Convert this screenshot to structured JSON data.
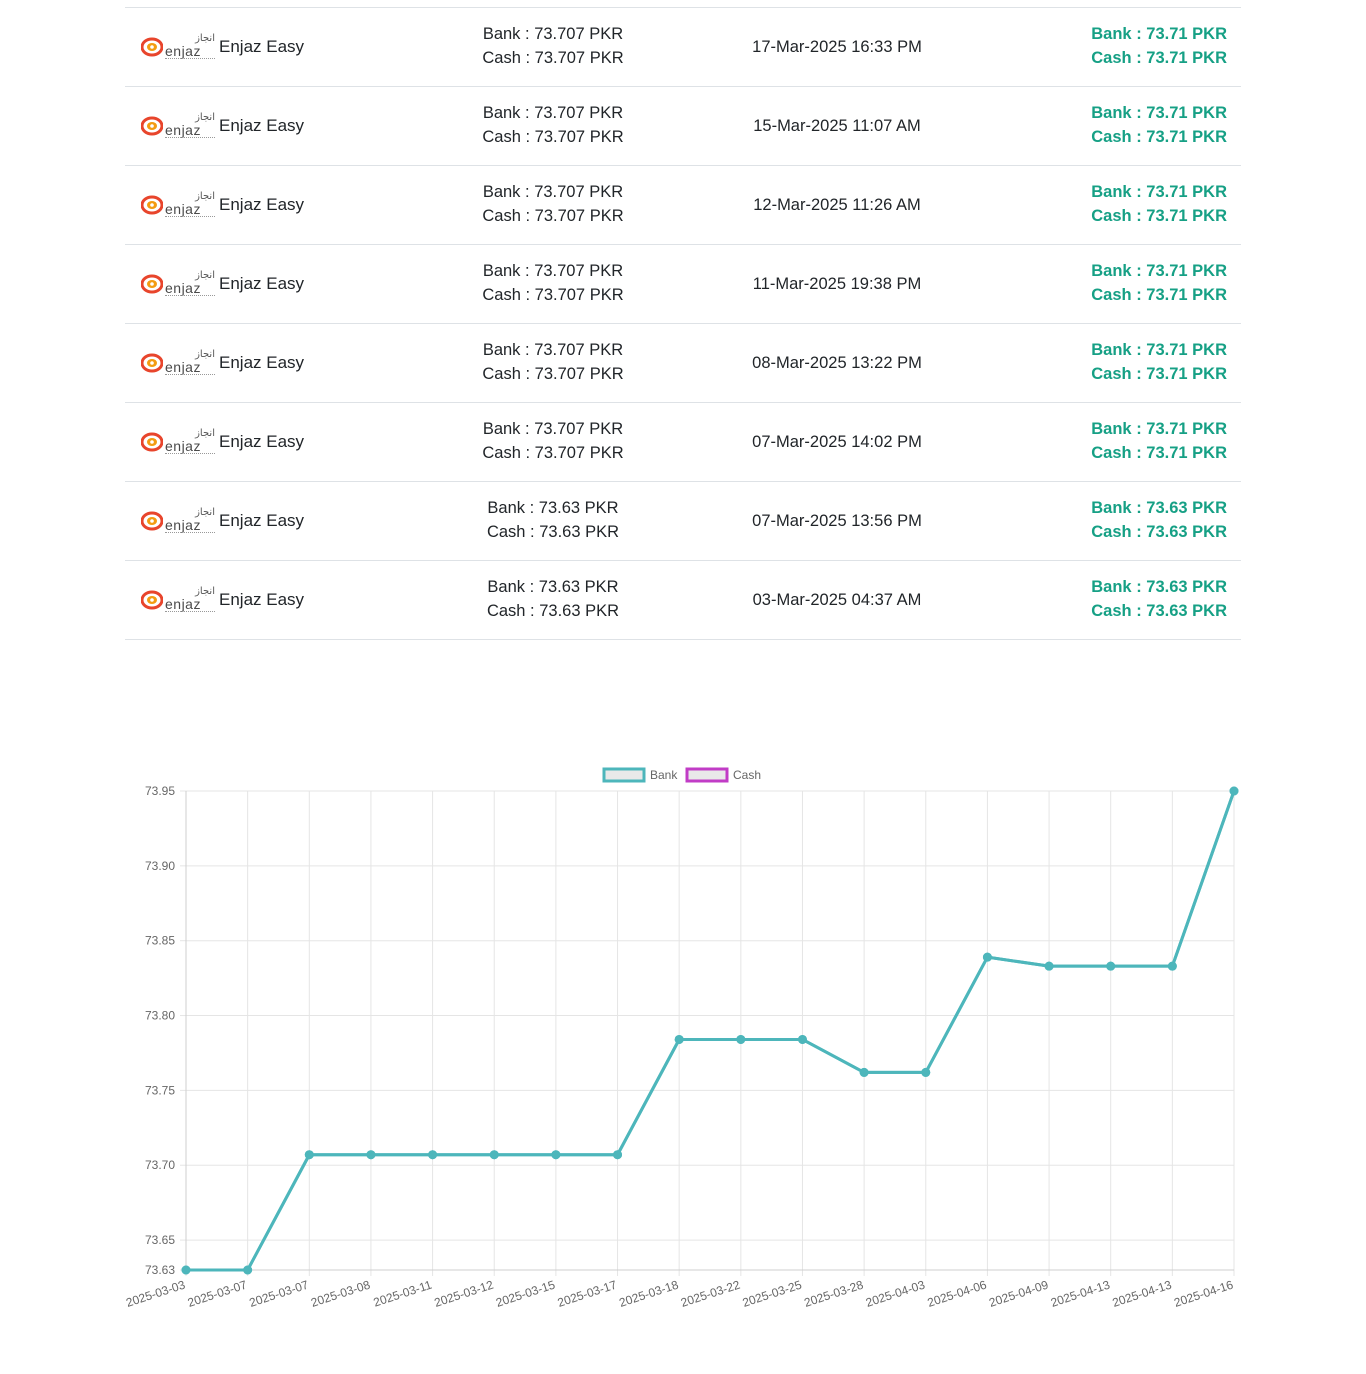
{
  "table": {
    "rows": [
      {
        "provider": "Enjaz Easy",
        "bank": "Bank : 73.707 PKR",
        "cash": "Cash : 73.707 PKR",
        "date": "17-Mar-2025 16:33 PM",
        "conv_bank": "Bank : 73.71 PKR",
        "conv_cash": "Cash : 73.71 PKR"
      },
      {
        "provider": "Enjaz Easy",
        "bank": "Bank : 73.707 PKR",
        "cash": "Cash : 73.707 PKR",
        "date": "15-Mar-2025 11:07 AM",
        "conv_bank": "Bank : 73.71 PKR",
        "conv_cash": "Cash : 73.71 PKR"
      },
      {
        "provider": "Enjaz Easy",
        "bank": "Bank : 73.707 PKR",
        "cash": "Cash : 73.707 PKR",
        "date": "12-Mar-2025 11:26 AM",
        "conv_bank": "Bank : 73.71 PKR",
        "conv_cash": "Cash : 73.71 PKR"
      },
      {
        "provider": "Enjaz Easy",
        "bank": "Bank : 73.707 PKR",
        "cash": "Cash : 73.707 PKR",
        "date": "11-Mar-2025 19:38 PM",
        "conv_bank": "Bank : 73.71 PKR",
        "conv_cash": "Cash : 73.71 PKR"
      },
      {
        "provider": "Enjaz Easy",
        "bank": "Bank : 73.707 PKR",
        "cash": "Cash : 73.707 PKR",
        "date": "08-Mar-2025 13:22 PM",
        "conv_bank": "Bank : 73.71 PKR",
        "conv_cash": "Cash : 73.71 PKR"
      },
      {
        "provider": "Enjaz Easy",
        "bank": "Bank : 73.707 PKR",
        "cash": "Cash : 73.707 PKR",
        "date": "07-Mar-2025 14:02 PM",
        "conv_bank": "Bank : 73.71 PKR",
        "conv_cash": "Cash : 73.71 PKR"
      },
      {
        "provider": "Enjaz Easy",
        "bank": "Bank : 73.63 PKR",
        "cash": "Cash : 73.63 PKR",
        "date": "07-Mar-2025 13:56 PM",
        "conv_bank": "Bank : 73.63 PKR",
        "conv_cash": "Cash : 73.63 PKR"
      },
      {
        "provider": "Enjaz Easy",
        "bank": "Bank : 73.63 PKR",
        "cash": "Cash : 73.63 PKR",
        "date": "03-Mar-2025 04:37 AM",
        "conv_bank": "Bank : 73.63 PKR",
        "conv_cash": "Cash : 73.63 PKR"
      }
    ]
  },
  "logo": {
    "arabic": "انجاز",
    "latin": "enjaz",
    "colors": {
      "outer": "#e8452c",
      "inner": "#f39c12"
    }
  },
  "colors": {
    "converted": "#16a085",
    "bank_line": "#4db6bb",
    "cash_line": "#c13cc6",
    "grid": "#e5e5e5"
  },
  "chart_data": {
    "type": "line",
    "categories": [
      "2025-03-03",
      "2025-03-07",
      "2025-03-07",
      "2025-03-08",
      "2025-03-11",
      "2025-03-12",
      "2025-03-15",
      "2025-03-17",
      "2025-03-18",
      "2025-03-22",
      "2025-03-25",
      "2025-03-28",
      "2025-04-03",
      "2025-04-06",
      "2025-04-09",
      "2025-04-13",
      "2025-04-13",
      "2025-04-16"
    ],
    "series": [
      {
        "name": "Bank",
        "values": [
          73.63,
          73.63,
          73.707,
          73.707,
          73.707,
          73.707,
          73.707,
          73.707,
          73.784,
          73.784,
          73.784,
          73.762,
          73.762,
          73.839,
          73.833,
          73.833,
          73.833,
          73.95
        ]
      },
      {
        "name": "Cash",
        "values": [
          73.63,
          73.63,
          73.707,
          73.707,
          73.707,
          73.707,
          73.707,
          73.707,
          73.784,
          73.784,
          73.784,
          73.762,
          73.762,
          73.839,
          73.833,
          73.833,
          73.833,
          73.95
        ]
      }
    ],
    "y_ticks": [
      "73.95",
      "73.90",
      "73.85",
      "73.80",
      "73.75",
      "73.70",
      "73.65",
      "73.63"
    ],
    "ylim": [
      73.63,
      73.95
    ],
    "grid": true,
    "legend": "top-center"
  }
}
